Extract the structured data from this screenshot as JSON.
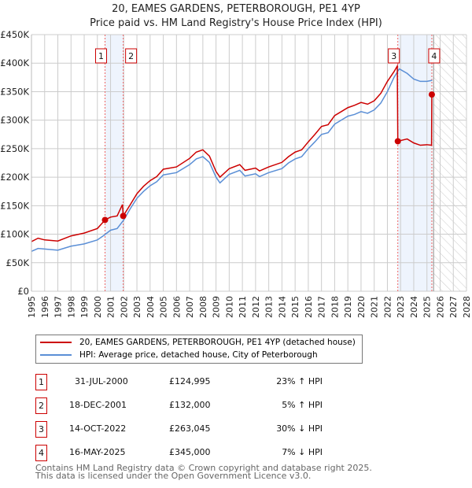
{
  "title": "20, EAMES GARDENS, PETERBOROUGH, PE1 4YP",
  "subtitle": "Price paid vs. HM Land Registry's House Price Index (HPI)",
  "chart_data": {
    "type": "line",
    "title": "20, EAMES GARDENS, PETERBOROUGH, PE1 4YP",
    "ylim": [
      0,
      450000
    ],
    "xlim": [
      1995,
      2028
    ],
    "y_ticks": [
      {
        "v": 0,
        "label": "£0"
      },
      {
        "v": 50000,
        "label": "£50K"
      },
      {
        "v": 100000,
        "label": "£100K"
      },
      {
        "v": 150000,
        "label": "£150K"
      },
      {
        "v": 200000,
        "label": "£200K"
      },
      {
        "v": 250000,
        "label": "£250K"
      },
      {
        "v": 300000,
        "label": "£300K"
      },
      {
        "v": 350000,
        "label": "£350K"
      },
      {
        "v": 400000,
        "label": "£400K"
      },
      {
        "v": 450000,
        "label": "£450K"
      }
    ],
    "x_ticks": [
      "1995",
      "1996",
      "1997",
      "1998",
      "1999",
      "2000",
      "2001",
      "2002",
      "2003",
      "2004",
      "2005",
      "2006",
      "2007",
      "2008",
      "2009",
      "2010",
      "2011",
      "2012",
      "2013",
      "2014",
      "2015",
      "2016",
      "2017",
      "2018",
      "2019",
      "2020",
      "2021",
      "2022",
      "2023",
      "2024",
      "2025",
      "2026",
      "2027",
      "2028"
    ],
    "forecast_from": 2025.5,
    "series": [
      {
        "name": "20, EAMES GARDENS, PETERBOROUGH, PE1 4YP (detached house)",
        "color": "#cc0000",
        "x": [
          1995,
          1995.5,
          1996,
          1997,
          1998,
          1999,
          2000,
          2000.58,
          2001,
          2001.5,
          2001.9,
          2001.96,
          2002.5,
          2003,
          2003.5,
          2004,
          2004.5,
          2005,
          2006,
          2007,
          2007.5,
          2008,
          2008.5,
          2009,
          2009.3,
          2010,
          2010.8,
          2011.2,
          2012,
          2012.3,
          2013,
          2014,
          2014.5,
          2015,
          2015.5,
          2016,
          2016.5,
          2017,
          2017.5,
          2018,
          2018.5,
          2019,
          2019.5,
          2020,
          2020.5,
          2021,
          2021.5,
          2022,
          2022.5,
          2022.75,
          2022.79,
          2023.5,
          2024,
          2024.5,
          2025,
          2025.35,
          2025.37
        ],
        "values": [
          87000,
          93000,
          90000,
          88000,
          97000,
          102000,
          110000,
          124995,
          130000,
          132000,
          152000,
          132000,
          152000,
          171000,
          184000,
          194000,
          201000,
          214000,
          218000,
          233000,
          244000,
          248000,
          237000,
          210000,
          200000,
          215000,
          222000,
          212000,
          216000,
          211000,
          218000,
          226000,
          236000,
          244000,
          248000,
          262000,
          275000,
          289000,
          292000,
          308000,
          315000,
          322000,
          326000,
          331000,
          328000,
          334000,
          347000,
          368000,
          385000,
          395000,
          263045,
          267000,
          260000,
          256000,
          257000,
          256000,
          345000
        ]
      },
      {
        "name": "HPI: Average price, detached house, City of Peterborough",
        "color": "#5b8fd6",
        "x": [
          1995,
          1995.5,
          1996,
          1997,
          1998,
          1999,
          2000,
          2000.5,
          2001,
          2001.5,
          2002,
          2002.5,
          2003,
          2003.5,
          2004,
          2004.5,
          2005,
          2006,
          2007,
          2007.5,
          2008,
          2008.5,
          2009,
          2009.3,
          2010,
          2010.8,
          2011.2,
          2012,
          2012.3,
          2013,
          2014,
          2014.5,
          2015,
          2015.5,
          2016,
          2016.5,
          2017,
          2017.5,
          2018,
          2018.5,
          2019,
          2019.5,
          2020,
          2020.5,
          2021,
          2021.5,
          2022,
          2022.5,
          2022.9,
          2023.5,
          2024,
          2024.5,
          2025,
          2025.4
        ],
        "values": [
          70000,
          75000,
          74000,
          72000,
          79000,
          83000,
          90000,
          98000,
          107000,
          110000,
          125000,
          145000,
          163000,
          175000,
          185000,
          192000,
          204000,
          208000,
          222000,
          232000,
          236000,
          226000,
          200000,
          190000,
          205000,
          212000,
          202000,
          206000,
          201000,
          208000,
          215000,
          225000,
          232000,
          236000,
          250000,
          262000,
          275000,
          278000,
          293000,
          300000,
          307000,
          310000,
          315000,
          312000,
          318000,
          330000,
          350000,
          375000,
          390000,
          382000,
          372000,
          368000,
          368000,
          370000
        ]
      }
    ],
    "sales": [
      {
        "id": "1",
        "x": 2000.58,
        "value": 124995,
        "date": "31-JUL-2000",
        "price": "£124,995",
        "hpi": "23% ↑ HPI"
      },
      {
        "id": "2",
        "x": 2001.96,
        "value": 132000,
        "date": "18-DEC-2001",
        "price": "£132,000",
        "hpi": "5% ↑ HPI"
      },
      {
        "id": "3",
        "x": 2022.79,
        "value": 263045,
        "date": "14-OCT-2022",
        "price": "£263,045",
        "hpi": "30% ↓ HPI"
      },
      {
        "id": "4",
        "x": 2025.37,
        "value": 345000,
        "date": "16-MAY-2025",
        "price": "£345,000",
        "hpi": "7% ↓ HPI"
      }
    ],
    "legend": [
      "20, EAMES GARDENS, PETERBOROUGH, PE1 4YP (detached house)",
      "HPI: Average price, detached house, City of Peterborough"
    ]
  },
  "footer": [
    "Contains HM Land Registry data © Crown copyright and database right 2025.",
    "This data is licensed under the Open Government Licence v3.0."
  ]
}
